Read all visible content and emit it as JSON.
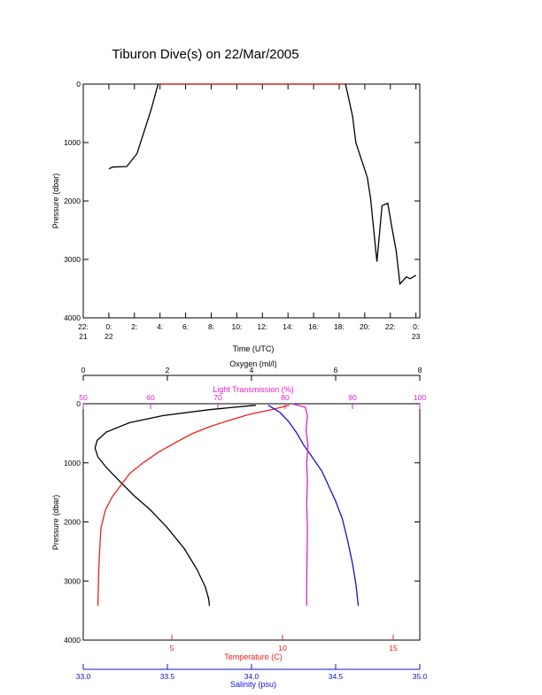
{
  "colors": {
    "axis": "#000000",
    "temperature": "#e8201c",
    "salinity": "#1010d8",
    "oxygen": "#000000",
    "light_transmission": "#e020c8"
  },
  "chart_data": [
    {
      "type": "line",
      "title": "Tiburon Dive(s) on 22/Mar/2005",
      "xlabel": "Time (UTC)",
      "ylabel": "Pressure (dbar)",
      "y_reversed": true,
      "ylim": [
        4000,
        0
      ],
      "y_ticks": [
        "0",
        "1000",
        "2000",
        "3000",
        "4000"
      ],
      "x_ticks": [
        {
          "top": "22:",
          "bottom": "21"
        },
        {
          "top": "0:",
          "bottom": "22"
        },
        {
          "top": "2:",
          "bottom": ""
        },
        {
          "top": "4:",
          "bottom": ""
        },
        {
          "top": "6:",
          "bottom": ""
        },
        {
          "top": "8:",
          "bottom": ""
        },
        {
          "top": "10:",
          "bottom": ""
        },
        {
          "top": "12:",
          "bottom": ""
        },
        {
          "top": "14:",
          "bottom": ""
        },
        {
          "top": "16:",
          "bottom": ""
        },
        {
          "top": "18:",
          "bottom": ""
        },
        {
          "top": "20:",
          "bottom": ""
        },
        {
          "top": "22:",
          "bottom": ""
        },
        {
          "top": "0:",
          "bottom": "23"
        }
      ],
      "x_range_hours": [
        -2,
        24.3
      ],
      "series": [
        {
          "color": "#000000",
          "x_hours": [
            0,
            0.3,
            1.4,
            2.2,
            3.3,
            3.85,
            18.5,
            19.05,
            19.3,
            20.2,
            20.45,
            20.95,
            21.35,
            21.8,
            22.1,
            22.45,
            22.75,
            23.25,
            23.55,
            24.0
          ],
          "pressure": [
            1450,
            1420,
            1410,
            1190,
            440,
            0,
            0,
            550,
            1000,
            1600,
            1950,
            3040,
            2080,
            2040,
            2430,
            2850,
            3420,
            3300,
            3330,
            3270
          ]
        },
        {
          "color": "#e8201c",
          "x_hours": [
            3.9,
            18.45
          ],
          "pressure": [
            0,
            0
          ]
        }
      ]
    },
    {
      "type": "line",
      "ylabel": "Pressure (dbar)",
      "y_reversed": true,
      "ylim": [
        4000,
        0
      ],
      "y_ticks": [
        "0",
        "1000",
        "2000",
        "3000",
        "4000"
      ],
      "axes": {
        "oxygen": {
          "label": "Oxygen (ml/l)",
          "range": [
            0,
            8
          ],
          "ticks": [
            "0",
            "2",
            "4",
            "6",
            "8"
          ],
          "position": "top"
        },
        "light_transmission": {
          "label": "Light Transmission (%)",
          "range": [
            50,
            100
          ],
          "ticks": [
            "50",
            "60",
            "70",
            "80",
            "90",
            "100"
          ],
          "position": "top"
        },
        "temperature": {
          "label": "Temperature (C)",
          "range": [
            1,
            16.2
          ],
          "ticks": [
            "5",
            "10",
            "15"
          ],
          "tick_values": [
            5,
            10,
            15
          ],
          "position": "bottom"
        },
        "salinity": {
          "label": "Salinity (psu)",
          "range": [
            33.0,
            35.0
          ],
          "ticks": [
            "33.0",
            "33.5",
            "34.0",
            "34.5",
            "35.0"
          ],
          "position": "bottom"
        }
      },
      "series": [
        {
          "axis": "oxygen",
          "color": "#000000",
          "x": [
            4.1,
            3.0,
            1.9,
            1.1,
            0.55,
            0.33,
            0.28,
            0.35,
            0.55,
            0.85,
            1.2,
            1.6,
            2.0,
            2.4,
            2.7,
            2.9,
            2.98,
            3.0
          ],
          "pressure": [
            25,
            100,
            200,
            320,
            480,
            620,
            750,
            900,
            1080,
            1300,
            1550,
            1800,
            2100,
            2450,
            2800,
            3100,
            3300,
            3420
          ]
        },
        {
          "axis": "temperature",
          "color": "#e8201c",
          "x": [
            10.3,
            9.5,
            8.5,
            7.6,
            6.7,
            5.9,
            5.2,
            4.4,
            3.7,
            3.1,
            2.7,
            2.3,
            2.0,
            1.8,
            1.75,
            1.7,
            1.68,
            1.66
          ],
          "pressure": [
            25,
            100,
            180,
            280,
            390,
            510,
            650,
            820,
            1000,
            1180,
            1380,
            1580,
            1800,
            2100,
            2400,
            2800,
            3150,
            3420
          ]
        },
        {
          "axis": "salinity",
          "color": "#1010d8",
          "x": [
            34.1,
            34.17,
            34.22,
            34.27,
            34.31,
            34.36,
            34.42,
            34.46,
            34.5,
            34.54,
            34.57,
            34.6,
            34.62,
            34.63,
            34.635
          ],
          "pressure": [
            25,
            150,
            300,
            500,
            700,
            900,
            1150,
            1400,
            1650,
            1950,
            2300,
            2700,
            3050,
            3300,
            3420
          ]
        },
        {
          "axis": "light_transmission",
          "color": "#e020c8",
          "x": [
            81,
            83,
            83.3,
            83.1,
            83.4,
            83.2,
            83.3,
            83.2,
            83.3,
            83.25,
            83.2,
            83.2
          ],
          "pressure": [
            0,
            60,
            200,
            450,
            700,
            1000,
            1300,
            1700,
            2100,
            2600,
            3100,
            3420
          ]
        }
      ]
    }
  ]
}
